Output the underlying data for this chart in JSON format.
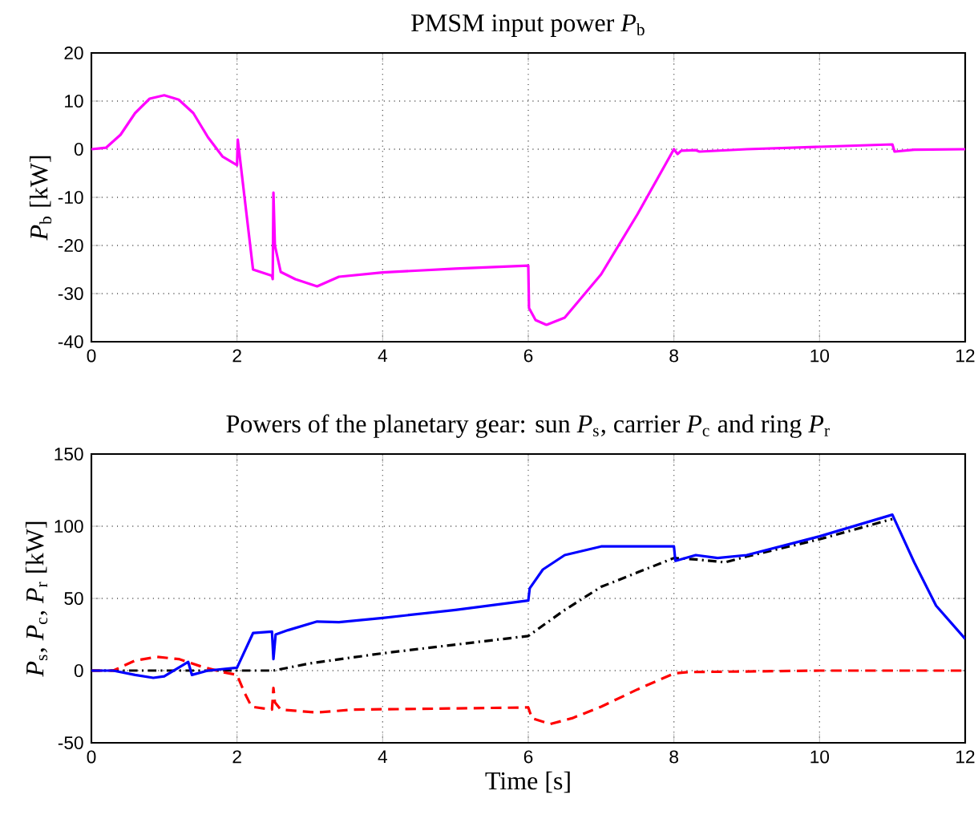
{
  "chart_data": [
    {
      "type": "line",
      "title": "PMSM input power *P*$_{b}$",
      "ylabel": "*P*$_{b}$ [kW]",
      "xlim": [
        0,
        12
      ],
      "ylim": [
        -40,
        20
      ],
      "xticks": [
        0,
        2,
        4,
        6,
        8,
        10,
        12
      ],
      "yticks": [
        -40,
        -30,
        -20,
        -10,
        0,
        10,
        20
      ],
      "grid": true,
      "series": [
        {
          "color": "#ff00ff",
          "line_style": "solid",
          "x": [
            0,
            0.2,
            0.4,
            0.6,
            0.8,
            1.0,
            1.2,
            1.4,
            1.6,
            1.8,
            2.0,
            2.01,
            2.22,
            2.48,
            2.49,
            2.5,
            2.52,
            2.6,
            2.8,
            3.1,
            3.4,
            4,
            5,
            6,
            6.01,
            6.1,
            6.25,
            6.5,
            7,
            7.5,
            8,
            8.05,
            8.1,
            8.3,
            8.35,
            9,
            10,
            11,
            11.03,
            11.3,
            12
          ],
          "values": [
            0,
            0.3,
            3,
            7.5,
            10.5,
            11.2,
            10.3,
            7.5,
            2.5,
            -1.5,
            -3.3,
            2,
            -25,
            -26.3,
            -27,
            -9,
            -20,
            -25.5,
            -27,
            -28.5,
            -26.5,
            -25.6,
            -24.8,
            -24.2,
            -33,
            -35.5,
            -36.5,
            -35,
            -26,
            -13.5,
            0,
            -1,
            -0.3,
            -0.2,
            -0.5,
            0,
            0.5,
            1,
            -0.5,
            -0.1,
            0
          ]
        }
      ]
    },
    {
      "type": "line",
      "title": "Powers of the planetary gear: sun *P*$_{s}$, carrier *P*$_{c}$ and ring *P*$_{r}$",
      "xlabel": "Time [s]",
      "ylabel": "*P*$_{s}$, *P*$_{c}$, *P*$_{r}$ [kW]",
      "xlim": [
        0,
        12
      ],
      "ylim": [
        -50,
        150
      ],
      "xticks": [
        0,
        2,
        4,
        6,
        8,
        10,
        12
      ],
      "yticks": [
        -50,
        0,
        50,
        100,
        150
      ],
      "grid": true,
      "series": [
        {
          "color": "#000000",
          "line_style": "dashdot",
          "x": [
            0,
            2.5,
            3,
            4,
            5,
            6,
            6.5,
            7,
            7.5,
            8,
            8.3,
            8.7,
            9,
            10,
            11
          ],
          "values": [
            0,
            0,
            5,
            12,
            18,
            24,
            42,
            58,
            68,
            78,
            77,
            75,
            79,
            91,
            105
          ]
        },
        {
          "color": "#ff0000",
          "line_style": "dashed",
          "x": [
            0,
            0.3,
            0.6,
            0.9,
            1.2,
            1.5,
            1.8,
            2.0,
            2.1,
            2.2,
            2.48,
            2.5,
            2.52,
            2.6,
            3.1,
            3.6,
            4.5,
            6,
            6.05,
            6.3,
            6.6,
            7,
            7.5,
            8,
            8.2,
            10,
            12
          ],
          "values": [
            0,
            0,
            7,
            9.5,
            8,
            3,
            -1,
            -3,
            -15,
            -25,
            -27,
            -12,
            -22,
            -27,
            -29,
            -27,
            -26.5,
            -25.5,
            -33,
            -37,
            -33,
            -25,
            -13,
            -2,
            -1,
            0,
            0
          ]
        },
        {
          "color": "#0000ff",
          "line_style": "solid",
          "x": [
            0,
            0.3,
            0.6,
            0.85,
            1.0,
            1.33,
            1.38,
            1.6,
            2.0,
            2.22,
            2.48,
            2.5,
            2.53,
            2.7,
            3.1,
            3.4,
            4,
            5,
            6,
            6.02,
            6.2,
            6.5,
            7,
            8,
            8.02,
            8.3,
            8.6,
            9,
            10,
            11,
            11.3,
            11.6,
            12
          ],
          "values": [
            0,
            0,
            -3,
            -5,
            -4,
            6,
            -3,
            0,
            2,
            26,
            27,
            8,
            25,
            28,
            34,
            33.5,
            36.5,
            42,
            48.5,
            57,
            70,
            80,
            86,
            86,
            76,
            80,
            78,
            80,
            93,
            108,
            75,
            45,
            22
          ]
        }
      ]
    }
  ]
}
